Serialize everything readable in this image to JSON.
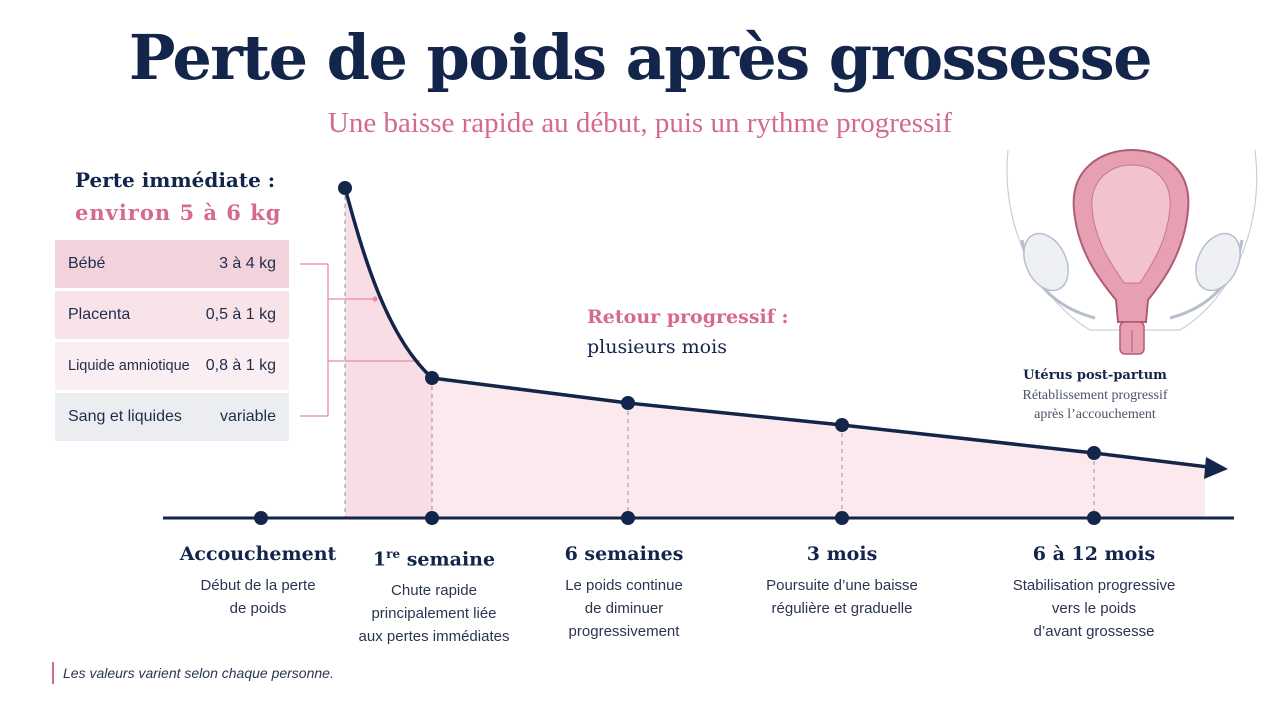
{
  "title": "Perte de poids après grossesse",
  "subtitle": "Une baisse rapide au début, puis un rythme progressif",
  "immediate": {
    "label": "Perte immédiate :",
    "total": "environ 5 à 6 kg",
    "components": [
      {
        "name": "Bébé",
        "value": "3 à 4 kg",
        "color": "#f2d3dc"
      },
      {
        "name": "Placenta",
        "value": "0,5 à 1 kg",
        "color": "#f8e3e9"
      },
      {
        "name": "Liquide amniotique",
        "value": "0,8 à 1 kg",
        "color": "#fbeef2"
      },
      {
        "name": "Sang et liquides",
        "value": "variable",
        "color": "#ebedf0"
      }
    ]
  },
  "progressive": {
    "label": "Retour progressif :",
    "sub": "plusieurs mois"
  },
  "milestones": [
    {
      "name": "Accouchement",
      "desc": [
        "Début de la perte",
        "de poids"
      ]
    },
    {
      "name_main": "1",
      "name_sup": "re",
      "name_rest": " semaine",
      "desc": [
        "Chute rapide",
        "principalement liée",
        "aux pertes immédiates"
      ]
    },
    {
      "name": "6 semaines",
      "desc": [
        "Le poids continue",
        "de diminuer",
        "progressivement"
      ]
    },
    {
      "name": "3 mois",
      "desc": [
        "Poursuite d’une baisse",
        "régulière et graduelle"
      ]
    },
    {
      "name": "6 à 12 mois",
      "desc": [
        "Stabilisation progressive",
        "vers le poids",
        "d’avant grossesse"
      ]
    }
  ],
  "uterus": {
    "title": "Utérus post-partum",
    "desc": [
      "Rétablissement progressif",
      "après l’accouchement"
    ]
  },
  "note": "Les valeurs varient selon chaque personne.",
  "colors": {
    "navy": "#13254b",
    "pink": "#d56a8f",
    "area": "#fbe9ee"
  }
}
